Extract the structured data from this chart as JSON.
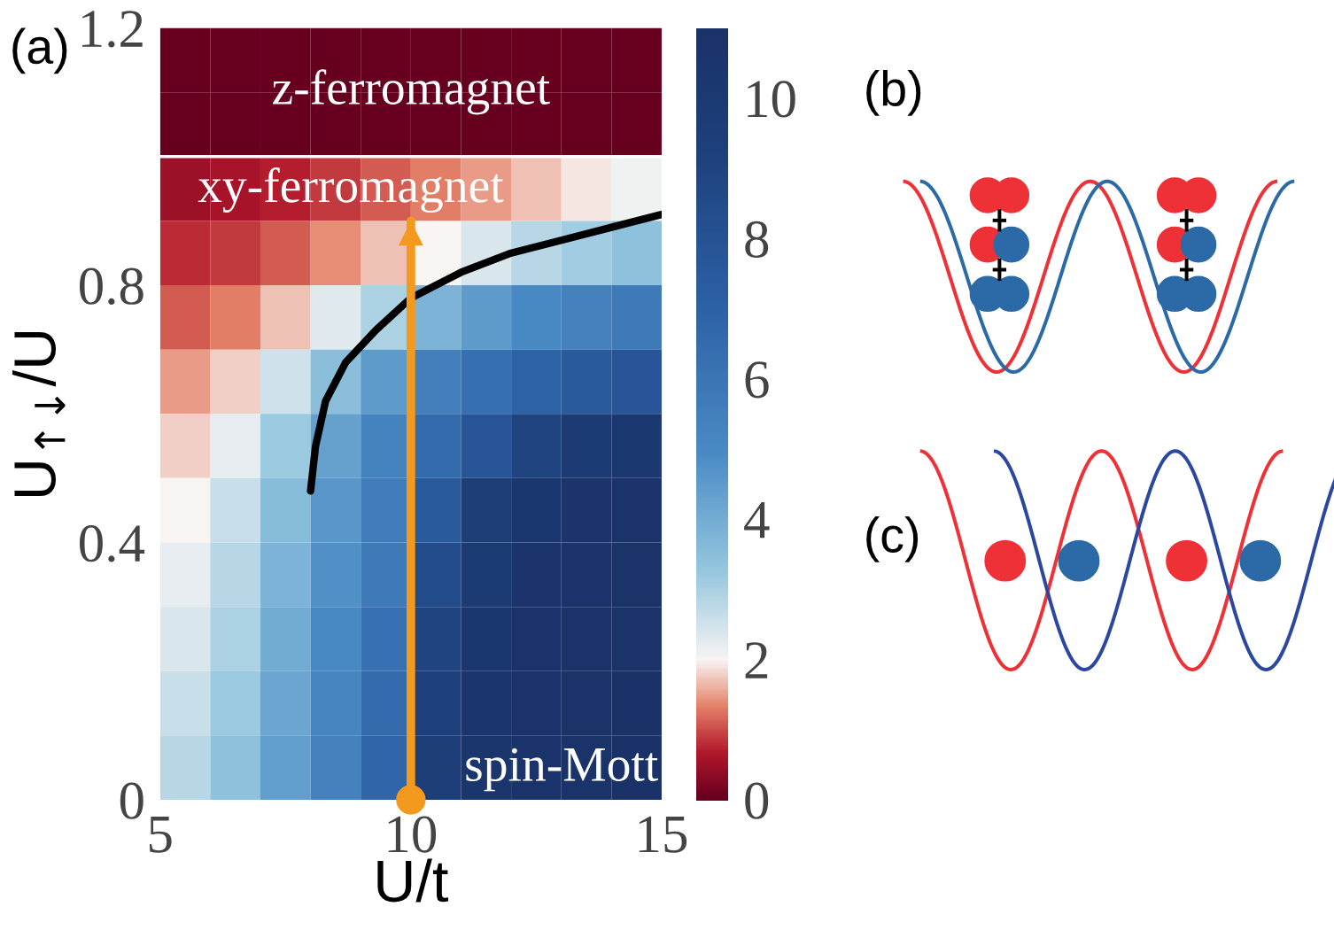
{
  "chart_data": {
    "type": "heatmap",
    "title": "(a)",
    "xlabel": "U/t",
    "ylabel": "U$_{↑↓}$/U",
    "x": [
      5.5,
      6.5,
      7.5,
      8.5,
      9.5,
      10.5,
      11.5,
      12.5,
      13.5,
      14.5
    ],
    "y": [
      1.15,
      1.05,
      0.95,
      0.85,
      0.75,
      0.65,
      0.55,
      0.45,
      0.35,
      0.25,
      0.15,
      0.05
    ],
    "cells": [
      [
        0,
        0,
        0,
        0,
        0,
        0,
        0,
        0,
        0,
        0
      ],
      [
        0,
        0,
        0,
        0,
        0,
        0,
        0,
        0,
        0,
        0
      ],
      [
        0.5,
        0.6,
        0.7,
        0.9,
        1.1,
        1.3,
        1.5,
        1.7,
        1.9,
        2.1
      ],
      [
        0.8,
        0.9,
        1.1,
        1.4,
        1.7,
        2.0,
        2.4,
        2.8,
        3.1,
        3.4
      ],
      [
        1.1,
        1.3,
        1.7,
        2.3,
        3.0,
        3.8,
        4.5,
        5.0,
        5.4,
        5.8
      ],
      [
        1.5,
        1.8,
        2.5,
        3.5,
        4.5,
        5.5,
        6.3,
        7.0,
        7.5,
        7.8
      ],
      [
        1.8,
        2.2,
        3.2,
        4.3,
        5.3,
        6.5,
        7.8,
        9.0,
        9.8,
        10.2
      ],
      [
        2.0,
        2.6,
        3.6,
        4.6,
        5.6,
        7.5,
        9.5,
        10.3,
        10.6,
        10.8
      ],
      [
        2.2,
        2.8,
        3.8,
        4.8,
        5.8,
        8.5,
        10.0,
        10.6,
        10.8,
        10.9
      ],
      [
        2.4,
        3.0,
        4.0,
        5.0,
        6.2,
        9.0,
        10.3,
        10.7,
        10.9,
        10.9
      ],
      [
        2.6,
        3.2,
        4.2,
        5.2,
        6.5,
        9.3,
        10.4,
        10.8,
        10.9,
        11.0
      ],
      [
        2.8,
        3.4,
        4.4,
        5.4,
        6.8,
        9.5,
        10.5,
        10.8,
        10.9,
        11.0
      ]
    ],
    "series": [
      {
        "type": "line",
        "color": "#000000",
        "x": [
          8,
          8.1,
          8.3,
          8.7,
          9.3,
          10,
          11,
          12,
          13,
          14,
          15
        ],
        "values": [
          0.48,
          0.55,
          0.62,
          0.68,
          0.73,
          0.78,
          0.82,
          0.85,
          0.87,
          0.89,
          0.91
        ]
      },
      {
        "type": "line",
        "color": "#f39a1e",
        "marker": "circle",
        "x": [
          10,
          10
        ],
        "values": [
          0,
          0.9
        ]
      }
    ],
    "ref_lines": [
      {
        "axis": "y",
        "value": 1.0,
        "color": "#ffffff"
      }
    ],
    "annotations": [
      "z-ferromagnet",
      "xy-ferromagnet",
      "spin-Mott",
      "(b)",
      "(c)"
    ],
    "xlim": [
      5,
      15
    ],
    "ylim": [
      0,
      1.2
    ],
    "xticks": [
      5,
      10,
      15
    ],
    "yticks": [
      0,
      0.4,
      0.8,
      1.2
    ],
    "clim": [
      0,
      11
    ],
    "cticks": [
      0,
      2,
      4,
      6,
      8,
      10
    ],
    "grid": false
  }
}
